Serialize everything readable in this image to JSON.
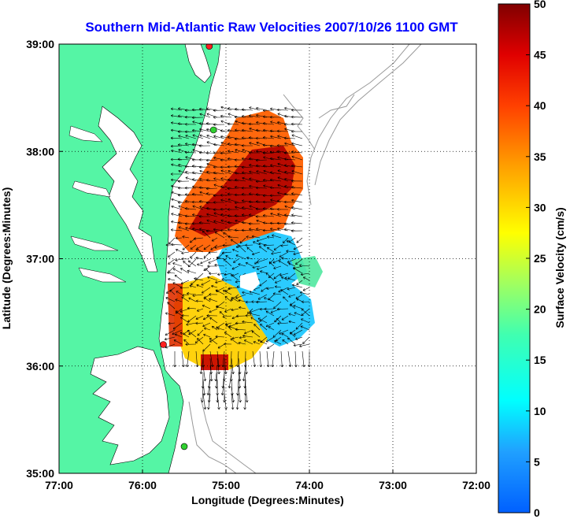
{
  "title": "Southern Mid-Atlantic Raw Velocities 2007/10/26 1100 GMT",
  "x_axis": {
    "label": "Longitude (Degrees:Minutes)",
    "ticks": [
      "77:00",
      "76:00",
      "75:00",
      "74:00",
      "73:00",
      "72:00"
    ]
  },
  "y_axis": {
    "label": "Latitude (Degrees:Minutes)",
    "ticks": [
      "39:00",
      "38:00",
      "37:00",
      "36:00",
      "35:00"
    ]
  },
  "colorbar": {
    "label": "Surface Velocity (cm/s)",
    "ticks": [
      "50",
      "45",
      "40",
      "35",
      "30",
      "25",
      "20",
      "15",
      "10",
      "5",
      "0"
    ],
    "min": 0,
    "max": 50
  },
  "colors": {
    "title": "#0000ff",
    "land": "#55f5a5",
    "frame": "#000000"
  },
  "map": {
    "lon_range": [
      -77,
      -72
    ],
    "lat_range": [
      35,
      39
    ],
    "grid": "dotted",
    "markers": [
      {
        "lon": -75.2,
        "lat": 38.98,
        "color": "#ff2020"
      },
      {
        "lon": -75.15,
        "lat": 38.2,
        "color": "#30d030"
      },
      {
        "lon": -75.75,
        "lat": 36.2,
        "color": "#ff2020"
      },
      {
        "lon": -75.5,
        "lat": 35.25,
        "color": "#30d030"
      }
    ]
  }
}
